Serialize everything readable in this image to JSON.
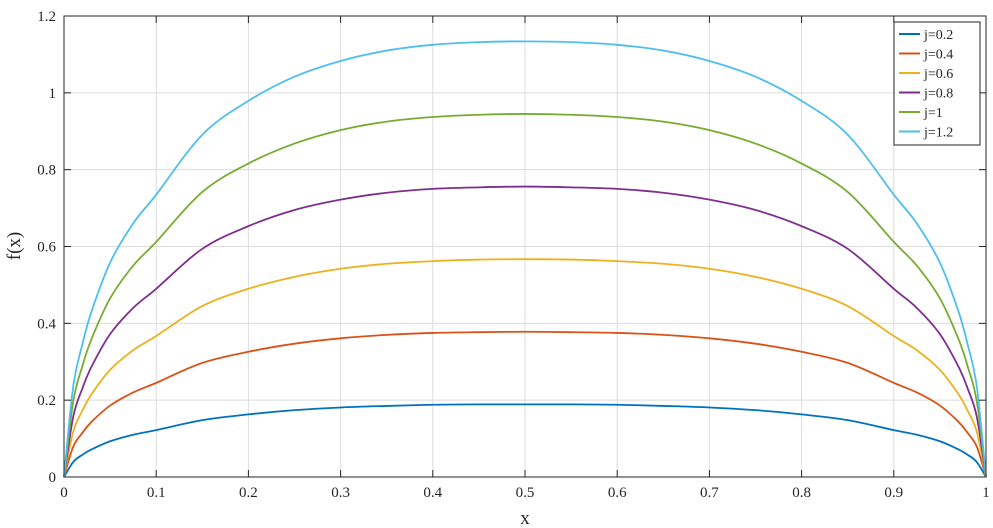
{
  "chart_data": {
    "type": "line",
    "title": "",
    "xlabel": "x",
    "ylabel": "f(x)",
    "xlim": [
      0,
      1
    ],
    "ylim": [
      0,
      1.2
    ],
    "grid": true,
    "legend_position": "top-right",
    "x": [
      0,
      0.01,
      0.02,
      0.03,
      0.05,
      0.075,
      0.1,
      0.15,
      0.2,
      0.25,
      0.3,
      0.35,
      0.4,
      0.45,
      0.5,
      0.55,
      0.6,
      0.65,
      0.7,
      0.75,
      0.8,
      0.85,
      0.9,
      0.925,
      0.95,
      0.97,
      0.98,
      0.99,
      1
    ],
    "xticks": [
      0,
      0.1,
      0.2,
      0.3,
      0.4,
      0.5,
      0.6,
      0.7,
      0.8,
      0.9,
      1
    ],
    "xtick_labels": [
      "0",
      "0.1",
      "0.2",
      "0.3",
      "0.4",
      "0.5",
      "0.6",
      "0.7",
      "0.8",
      "0.9",
      "1"
    ],
    "yticks": [
      0,
      0.2,
      0.4,
      0.6,
      0.8,
      1,
      1.2
    ],
    "ytick_labels": [
      "0",
      "0.2",
      "0.4",
      "0.6",
      "0.8",
      "1",
      "1.2"
    ],
    "series": [
      {
        "name": "j=0.2",
        "color": "#0072BD",
        "values": [
          0,
          0.039,
          0.058,
          0.072,
          0.093,
          0.11,
          0.122,
          0.148,
          0.163,
          0.174,
          0.181,
          0.185,
          0.188,
          0.189,
          0.189,
          0.189,
          0.188,
          0.185,
          0.181,
          0.174,
          0.163,
          0.148,
          0.122,
          0.11,
          0.093,
          0.072,
          0.058,
          0.039,
          0
        ]
      },
      {
        "name": "j=0.4",
        "color": "#D95319",
        "values": [
          0,
          0.079,
          0.115,
          0.144,
          0.186,
          0.22,
          0.245,
          0.297,
          0.326,
          0.347,
          0.361,
          0.37,
          0.375,
          0.377,
          0.378,
          0.377,
          0.375,
          0.37,
          0.361,
          0.347,
          0.326,
          0.297,
          0.245,
          0.22,
          0.186,
          0.144,
          0.115,
          0.079,
          0
        ]
      },
      {
        "name": "j=0.6",
        "color": "#EDB120",
        "values": [
          0,
          0.118,
          0.173,
          0.216,
          0.279,
          0.33,
          0.367,
          0.445,
          0.49,
          0.521,
          0.542,
          0.555,
          0.562,
          0.566,
          0.567,
          0.566,
          0.562,
          0.555,
          0.542,
          0.521,
          0.49,
          0.445,
          0.367,
          0.33,
          0.279,
          0.216,
          0.173,
          0.118,
          0
        ]
      },
      {
        "name": "j=0.8",
        "color": "#7E2F8E",
        "values": [
          0,
          0.157,
          0.231,
          0.288,
          0.372,
          0.44,
          0.49,
          0.594,
          0.653,
          0.695,
          0.722,
          0.74,
          0.75,
          0.754,
          0.756,
          0.754,
          0.75,
          0.74,
          0.722,
          0.695,
          0.653,
          0.594,
          0.49,
          0.44,
          0.372,
          0.288,
          0.231,
          0.157,
          0
        ]
      },
      {
        "name": "j=1",
        "color": "#77AC30",
        "values": [
          0,
          0.197,
          0.289,
          0.36,
          0.465,
          0.55,
          0.612,
          0.742,
          0.816,
          0.868,
          0.903,
          0.925,
          0.937,
          0.943,
          0.945,
          0.943,
          0.937,
          0.925,
          0.903,
          0.868,
          0.816,
          0.742,
          0.612,
          0.55,
          0.465,
          0.36,
          0.289,
          0.197,
          0
        ]
      },
      {
        "name": "j=1.2",
        "color": "#4DBEEE",
        "values": [
          0,
          0.236,
          0.346,
          0.432,
          0.558,
          0.66,
          0.735,
          0.891,
          0.979,
          1.042,
          1.083,
          1.11,
          1.125,
          1.132,
          1.134,
          1.132,
          1.125,
          1.11,
          1.083,
          1.042,
          0.979,
          0.891,
          0.735,
          0.66,
          0.558,
          0.432,
          0.346,
          0.236,
          0
        ]
      }
    ]
  }
}
